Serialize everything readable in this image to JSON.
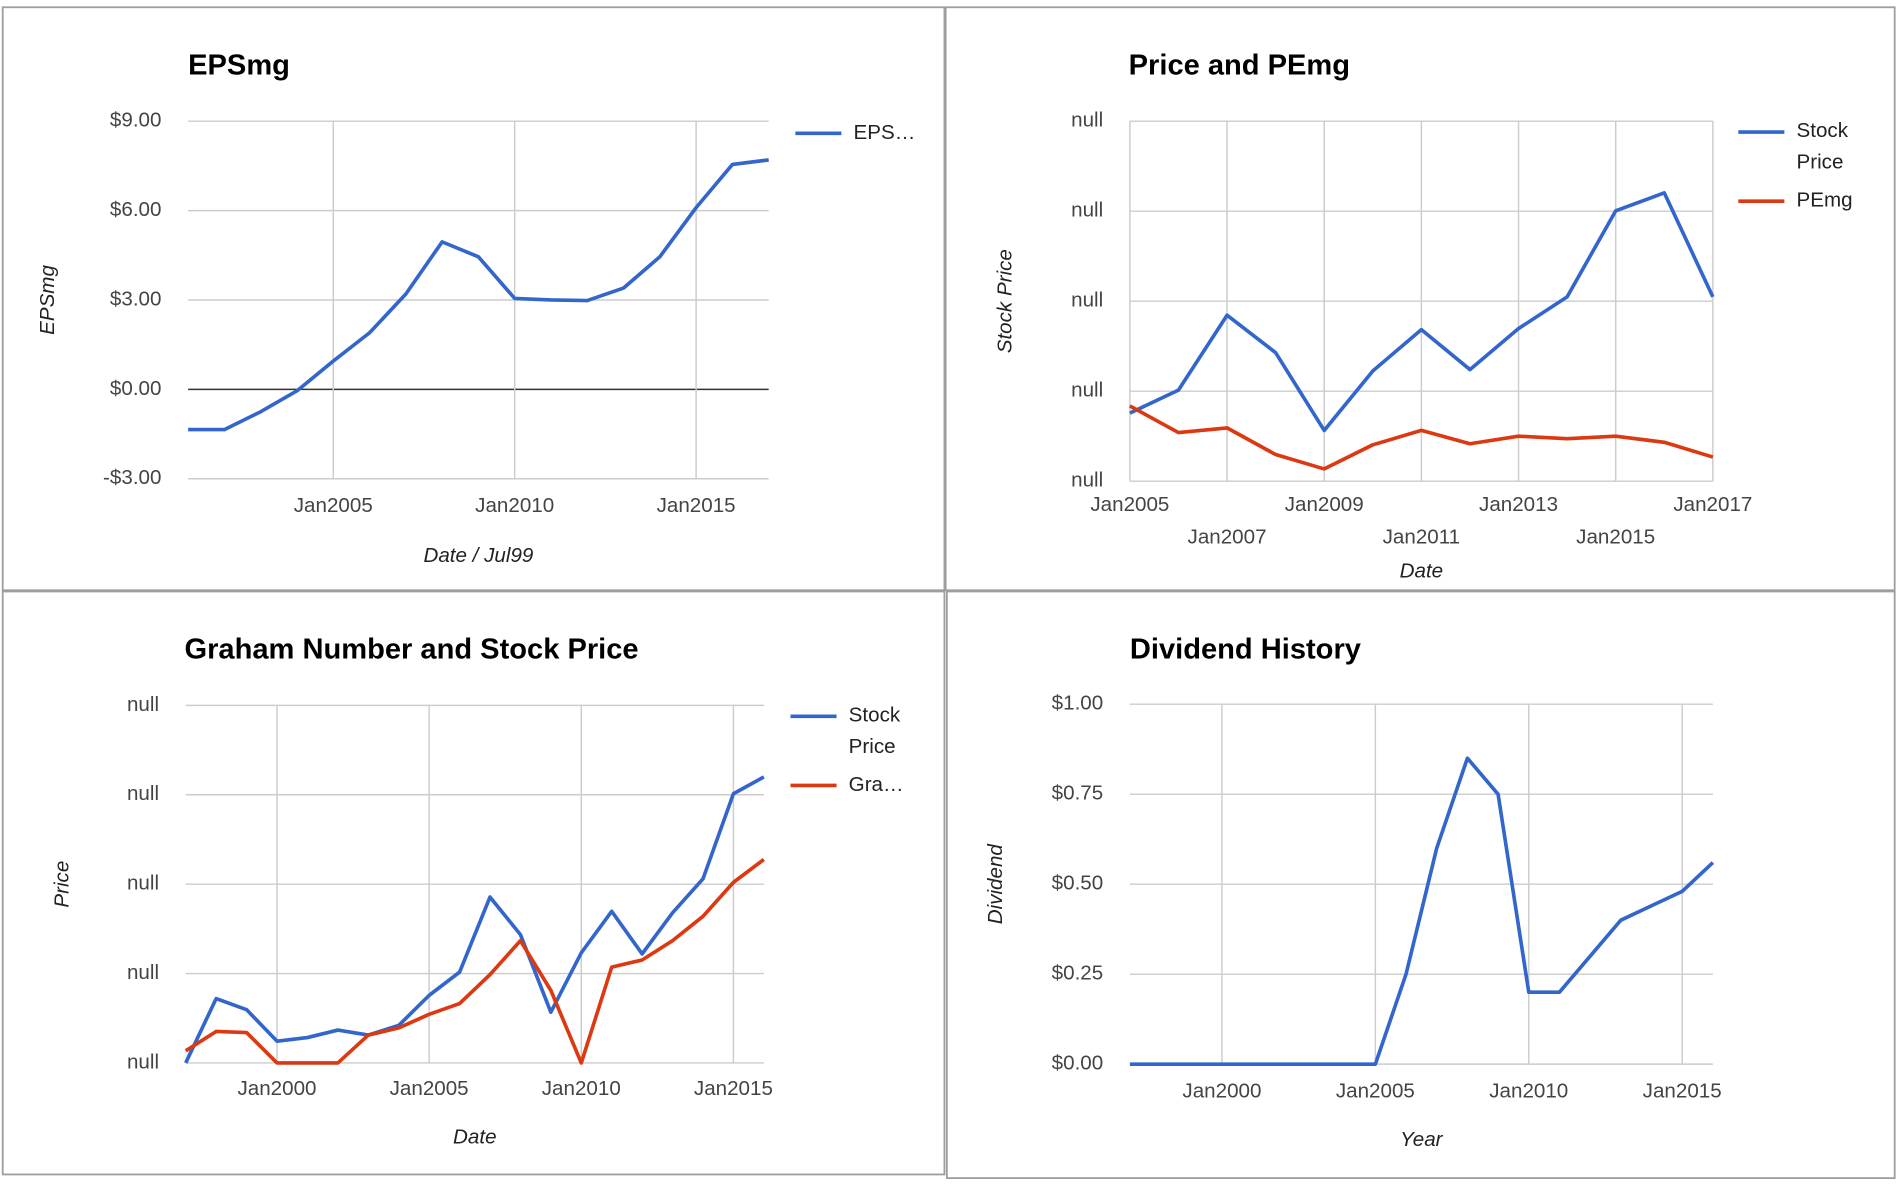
{
  "chart_data": [
    {
      "type": "line",
      "title": "EPSmg",
      "x_label": "Date / Jul99",
      "y_label": "EPSmg",
      "x": [
        "2001-01",
        "2002-01",
        "2003-01",
        "2004-01",
        "2005-01",
        "2006-01",
        "2007-01",
        "2008-01",
        "2009-01",
        "2010-01",
        "2011-01",
        "2012-01",
        "2013-01",
        "2014-01",
        "2015-01",
        "2016-01",
        "2017-01"
      ],
      "xlim": [
        "2001-01",
        "2017-01"
      ],
      "xticks": [
        {
          "value": "2005-01",
          "label": "Jan2005"
        },
        {
          "value": "2010-01",
          "label": "Jan2010"
        },
        {
          "value": "2015-01",
          "label": "Jan2015"
        }
      ],
      "ylim": [
        -3,
        9
      ],
      "yticks": [
        {
          "value": -3,
          "label": "-$3.00"
        },
        {
          "value": 0,
          "label": "$0.00"
        },
        {
          "value": 3,
          "label": "$3.00"
        },
        {
          "value": 6,
          "label": "$6.00"
        },
        {
          "value": 9,
          "label": "$9.00"
        }
      ],
      "grid": true,
      "legend": "right",
      "series": [
        {
          "name": "EPS…",
          "color": "#3366cc",
          "values": [
            -1.35,
            -1.35,
            -0.75,
            -0.05,
            0.95,
            1.9,
            3.2,
            4.95,
            4.45,
            3.05,
            3.0,
            2.98,
            3.4,
            4.45,
            6.1,
            7.55,
            7.7
          ]
        }
      ]
    },
    {
      "type": "line",
      "title": "Price and PEmg",
      "x_label": "Date",
      "y_label": "Stock Price",
      "x": [
        "2005-01",
        "2006-01",
        "2007-01",
        "2008-01",
        "2009-01",
        "2010-01",
        "2011-01",
        "2012-01",
        "2013-01",
        "2014-01",
        "2015-01",
        "2016-01",
        "2017-01"
      ],
      "xlim": [
        "2005-01",
        "2017-01"
      ],
      "xticks": [
        {
          "value": "2005-01",
          "label": "Jan2005"
        },
        {
          "value": "2007-01",
          "label": "Jan2007"
        },
        {
          "value": "2009-01",
          "label": "Jan2009"
        },
        {
          "value": "2011-01",
          "label": "Jan2011"
        },
        {
          "value": "2013-01",
          "label": "Jan2013"
        },
        {
          "value": "2015-01",
          "label": "Jan2015"
        },
        {
          "value": "2017-01",
          "label": "Jan2017"
        }
      ],
      "ylim": [
        0,
        100
      ],
      "yticks": [
        {
          "value": 0,
          "label": "null"
        },
        {
          "value": 25,
          "label": "null"
        },
        {
          "value": 50,
          "label": "null"
        },
        {
          "value": 75,
          "label": "null"
        },
        {
          "value": 100,
          "label": "null"
        }
      ],
      "grid": true,
      "legend": "right",
      "series": [
        {
          "name": "Stock Price",
          "color": "#3366cc",
          "values": [
            18.9,
            25.3,
            46.1,
            35.7,
            14.1,
            30.6,
            42.1,
            31.0,
            42.4,
            51.2,
            75.1,
            80.1,
            51.2
          ]
        },
        {
          "name": "PEmg",
          "color": "#dc3912",
          "values": [
            20.9,
            13.5,
            14.8,
            7.4,
            3.4,
            10.1,
            14.1,
            10.4,
            12.5,
            11.8,
            12.5,
            10.8,
            6.7
          ]
        }
      ]
    },
    {
      "type": "line",
      "title": "Graham Number and Stock Price",
      "x_label": "Date",
      "y_label": "Price",
      "x": [
        "1997-01",
        "1998-01",
        "1999-01",
        "2000-01",
        "2001-01",
        "2002-01",
        "2003-01",
        "2004-01",
        "2005-01",
        "2006-01",
        "2007-01",
        "2008-01",
        "2009-01",
        "2010-01",
        "2011-01",
        "2012-01",
        "2013-01",
        "2014-01",
        "2015-01",
        "2016-01"
      ],
      "xlim": [
        "1997-01",
        "2016-01"
      ],
      "xticks": [
        {
          "value": "2000-01",
          "label": "Jan2000"
        },
        {
          "value": "2005-01",
          "label": "Jan2005"
        },
        {
          "value": "2010-01",
          "label": "Jan2010"
        },
        {
          "value": "2015-01",
          "label": "Jan2015"
        }
      ],
      "ylim": [
        0,
        100
      ],
      "yticks": [
        {
          "value": 0,
          "label": "null"
        },
        {
          "value": 25,
          "label": "null"
        },
        {
          "value": 50,
          "label": "null"
        },
        {
          "value": 75,
          "label": "null"
        },
        {
          "value": 100,
          "label": "null"
        }
      ],
      "grid": true,
      "legend": "right",
      "series": [
        {
          "name": "Stock Price",
          "color": "#3366cc",
          "values": [
            0,
            18.0,
            14.9,
            6.1,
            7.1,
            9.2,
            7.8,
            10.5,
            18.9,
            25.4,
            46.4,
            35.9,
            14.2,
            30.8,
            42.4,
            30.5,
            42.0,
            51.5,
            75.3,
            80.0
          ]
        },
        {
          "name": "Gra…",
          "color": "#dc3912",
          "values": [
            3.4,
            8.8,
            8.5,
            0,
            0,
            0,
            7.8,
            9.8,
            13.6,
            16.6,
            24.7,
            34.2,
            20.3,
            0,
            26.8,
            28.8,
            34.2,
            41.0,
            50.5,
            56.9
          ]
        }
      ]
    },
    {
      "type": "line",
      "title": "Dividend History",
      "x_label": "Year",
      "y_label": "Dividend",
      "x": [
        "1997-01",
        "1998-01",
        "1999-01",
        "2000-01",
        "2001-01",
        "2002-01",
        "2003-01",
        "2004-01",
        "2005-01",
        "2006-01",
        "2007-01",
        "2008-01",
        "2009-01",
        "2010-01",
        "2011-01",
        "2012-01",
        "2013-01",
        "2014-01",
        "2015-01",
        "2016-01"
      ],
      "xlim": [
        "1997-01",
        "2016-01"
      ],
      "xticks": [
        {
          "value": "2000-01",
          "label": "Jan2000"
        },
        {
          "value": "2005-01",
          "label": "Jan2005"
        },
        {
          "value": "2010-01",
          "label": "Jan2010"
        },
        {
          "value": "2015-01",
          "label": "Jan2015"
        }
      ],
      "ylim": [
        0,
        1
      ],
      "yticks": [
        {
          "value": 0,
          "label": "$0.00"
        },
        {
          "value": 0.25,
          "label": "$0.25"
        },
        {
          "value": 0.5,
          "label": "$0.50"
        },
        {
          "value": 0.75,
          "label": "$0.75"
        },
        {
          "value": 1,
          "label": "$1.00"
        }
      ],
      "grid": true,
      "color": "#3366cc",
      "values": [
        0,
        0,
        0,
        0,
        0,
        0,
        0,
        0,
        0,
        0.25,
        0.6,
        0.85,
        0.75,
        0.2,
        0.2,
        0.3,
        0.4,
        0.44,
        0.48,
        0.56
      ]
    }
  ]
}
